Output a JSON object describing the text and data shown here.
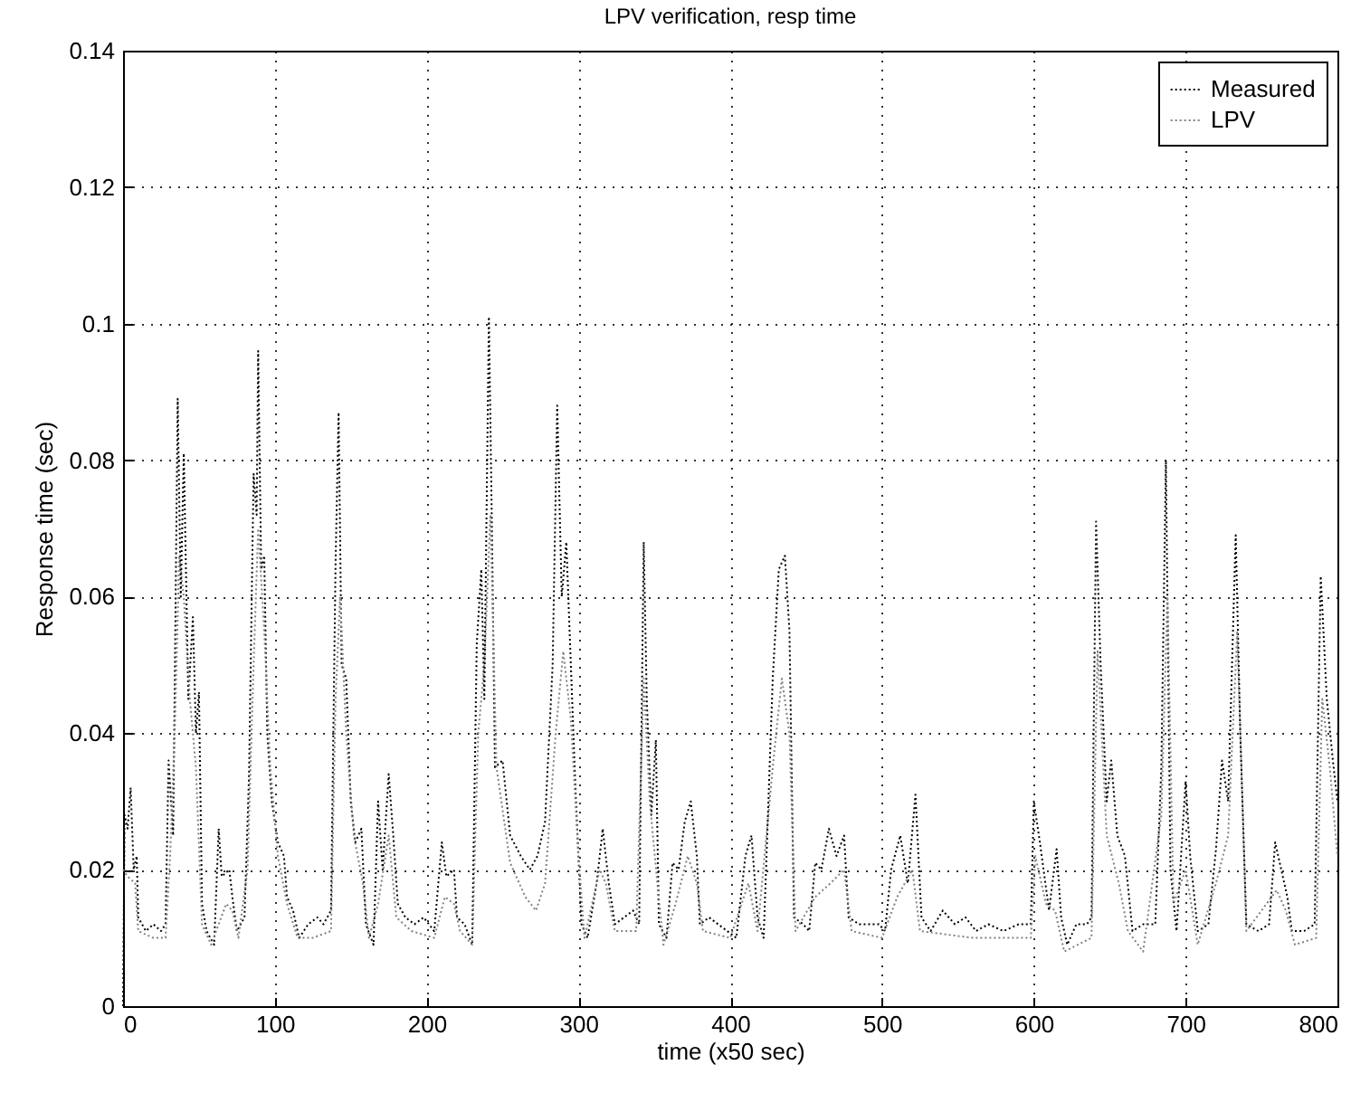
{
  "chart_data": {
    "type": "line",
    "title": "LPV verification, resp time",
    "xlabel": "time (x50 sec)",
    "ylabel": "Response time (sec)",
    "xlim": [
      0,
      800
    ],
    "xticks": [
      0,
      100,
      200,
      300,
      400,
      500,
      600,
      700,
      800
    ],
    "ylim": [
      0,
      0.14
    ],
    "yticks": [
      0,
      0.02,
      0.04,
      0.06,
      0.08,
      0.1,
      0.12,
      0.14
    ],
    "grid": true,
    "legend": "top right",
    "line_style": "dotted",
    "series": [
      {
        "name": "Measured",
        "color": "#000000",
        "x": [
          0,
          1,
          3,
          5,
          7,
          9,
          10,
          15,
          20,
          25,
          28,
          30,
          33,
          36,
          38,
          40,
          43,
          46,
          48,
          50,
          52,
          55,
          60,
          63,
          65,
          70,
          72,
          75,
          80,
          83,
          86,
          88,
          89,
          91,
          93,
          95,
          98,
          102,
          106,
          108,
          112,
          116,
          122,
          128,
          132,
          137,
          140,
          142,
          144,
          147,
          150,
          153,
          157,
          160,
          165,
          168,
          171,
          175,
          178,
          181,
          186,
          192,
          198,
          205,
          210,
          213,
          218,
          220,
          225,
          230,
          233,
          236,
          238,
          241,
          243,
          245,
          250,
          255,
          262,
          268,
          273,
          278,
          283,
          286,
          289,
          292,
          295,
          298,
          302,
          306,
          312,
          316,
          320,
          324,
          330,
          336,
          340,
          343,
          345,
          348,
          351,
          353,
          358,
          362,
          366,
          370,
          374,
          378,
          380,
          386,
          392,
          398,
          404,
          410,
          414,
          418,
          422,
          428,
          432,
          436,
          439,
          442,
          448,
          452,
          456,
          460,
          465,
          470,
          475,
          478,
          485,
          492,
          498,
          502,
          506,
          512,
          517,
          522,
          526,
          532,
          540,
          548,
          555,
          562,
          570,
          580,
          590,
          598,
          600,
          604,
          610,
          615,
          618,
          622,
          628,
          635,
          638,
          641,
          644,
          648,
          651,
          655,
          660,
          665,
          672,
          680,
          684,
          687,
          690,
          694,
          700,
          703,
          708,
          715,
          720,
          724,
          728,
          733,
          736,
          740,
          748,
          755,
          759,
          763,
          767,
          770,
          778,
          785,
          789,
          793,
          797,
          800
        ],
        "values": [
          0,
          0.028,
          0.026,
          0.032,
          0.02,
          0.022,
          0.013,
          0.011,
          0.012,
          0.011,
          0.012,
          0.036,
          0.025,
          0.089,
          0.06,
          0.081,
          0.045,
          0.057,
          0.04,
          0.046,
          0.015,
          0.011,
          0.009,
          0.026,
          0.019,
          0.02,
          0.016,
          0.011,
          0.013,
          0.034,
          0.078,
          0.072,
          0.096,
          0.064,
          0.066,
          0.04,
          0.03,
          0.024,
          0.022,
          0.016,
          0.014,
          0.01,
          0.012,
          0.013,
          0.012,
          0.014,
          0.065,
          0.087,
          0.05,
          0.048,
          0.03,
          0.024,
          0.026,
          0.012,
          0.009,
          0.03,
          0.02,
          0.034,
          0.025,
          0.015,
          0.013,
          0.012,
          0.013,
          0.011,
          0.024,
          0.019,
          0.02,
          0.013,
          0.012,
          0.009,
          0.053,
          0.064,
          0.045,
          0.101,
          0.07,
          0.035,
          0.036,
          0.025,
          0.022,
          0.02,
          0.022,
          0.027,
          0.05,
          0.088,
          0.06,
          0.068,
          0.05,
          0.032,
          0.012,
          0.01,
          0.018,
          0.026,
          0.018,
          0.012,
          0.013,
          0.014,
          0.012,
          0.068,
          0.045,
          0.028,
          0.039,
          0.012,
          0.01,
          0.021,
          0.02,
          0.027,
          0.03,
          0.022,
          0.012,
          0.013,
          0.012,
          0.011,
          0.01,
          0.022,
          0.025,
          0.013,
          0.01,
          0.048,
          0.064,
          0.066,
          0.055,
          0.013,
          0.012,
          0.011,
          0.021,
          0.02,
          0.026,
          0.022,
          0.025,
          0.013,
          0.012,
          0.012,
          0.012,
          0.011,
          0.02,
          0.025,
          0.018,
          0.031,
          0.013,
          0.011,
          0.014,
          0.012,
          0.013,
          0.011,
          0.012,
          0.011,
          0.012,
          0.012,
          0.03,
          0.024,
          0.014,
          0.023,
          0.013,
          0.009,
          0.012,
          0.012,
          0.013,
          0.071,
          0.05,
          0.03,
          0.036,
          0.025,
          0.022,
          0.011,
          0.012,
          0.012,
          0.035,
          0.08,
          0.02,
          0.011,
          0.033,
          0.022,
          0.011,
          0.012,
          0.023,
          0.036,
          0.03,
          0.069,
          0.04,
          0.012,
          0.011,
          0.012,
          0.024,
          0.02,
          0.016,
          0.011,
          0.011,
          0.012,
          0.063,
          0.045,
          0.036,
          0.03
        ]
      },
      {
        "name": "LPV",
        "color": "#808080",
        "x": [
          0,
          3,
          8,
          10,
          20,
          28,
          31,
          34,
          37,
          40,
          44,
          48,
          52,
          58,
          63,
          68,
          72,
          76,
          82,
          86,
          89,
          93,
          97,
          102,
          108,
          115,
          125,
          137,
          140,
          143,
          147,
          152,
          158,
          162,
          168,
          175,
          180,
          190,
          205,
          212,
          218,
          222,
          230,
          234,
          238,
          242,
          246,
          255,
          265,
          272,
          278,
          285,
          290,
          295,
          300,
          304,
          314,
          318,
          324,
          338,
          343,
          347,
          352,
          356,
          364,
          372,
          378,
          382,
          400,
          412,
          418,
          428,
          434,
          439,
          443,
          456,
          466,
          475,
          480,
          500,
          510,
          520,
          525,
          560,
          598,
          601,
          608,
          614,
          620,
          638,
          642,
          648,
          656,
          662,
          672,
          684,
          688,
          692,
          700,
          708,
          720,
          728,
          734,
          740,
          760,
          766,
          772,
          786,
          790,
          795,
          800
        ],
        "values": [
          0.02,
          0.019,
          0.018,
          0.011,
          0.01,
          0.01,
          0.022,
          0.04,
          0.066,
          0.06,
          0.045,
          0.035,
          0.012,
          0.009,
          0.012,
          0.015,
          0.014,
          0.01,
          0.02,
          0.05,
          0.07,
          0.055,
          0.035,
          0.022,
          0.015,
          0.01,
          0.01,
          0.011,
          0.045,
          0.06,
          0.04,
          0.025,
          0.018,
          0.01,
          0.015,
          0.025,
          0.013,
          0.011,
          0.01,
          0.016,
          0.015,
          0.011,
          0.009,
          0.04,
          0.05,
          0.072,
          0.035,
          0.021,
          0.016,
          0.014,
          0.018,
          0.04,
          0.052,
          0.042,
          0.022,
          0.01,
          0.02,
          0.018,
          0.011,
          0.011,
          0.048,
          0.03,
          0.018,
          0.009,
          0.015,
          0.022,
          0.018,
          0.011,
          0.01,
          0.018,
          0.011,
          0.035,
          0.048,
          0.04,
          0.011,
          0.016,
          0.018,
          0.02,
          0.011,
          0.01,
          0.016,
          0.02,
          0.011,
          0.01,
          0.01,
          0.022,
          0.015,
          0.014,
          0.008,
          0.01,
          0.052,
          0.025,
          0.018,
          0.011,
          0.008,
          0.028,
          0.06,
          0.015,
          0.02,
          0.009,
          0.018,
          0.025,
          0.055,
          0.011,
          0.017,
          0.014,
          0.009,
          0.01,
          0.045,
          0.035,
          0.022
        ]
      }
    ]
  }
}
